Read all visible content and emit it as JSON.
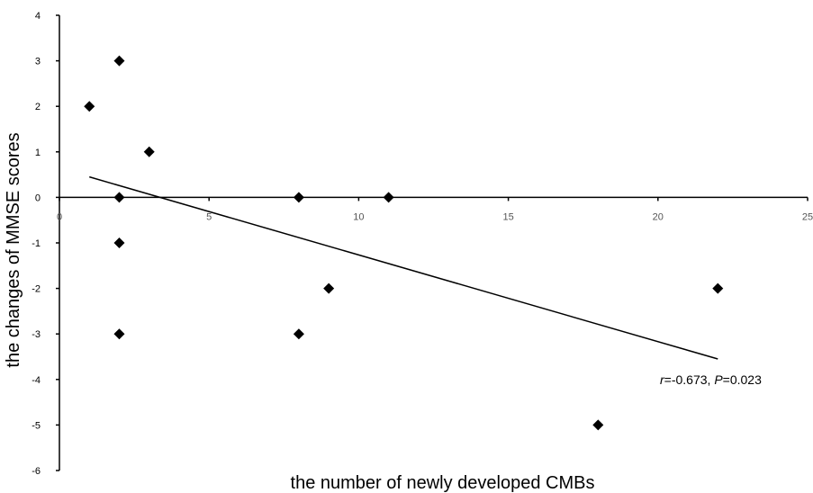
{
  "chart_data": {
    "type": "scatter",
    "title": "",
    "xlabel": "the number of newly developed CMBs",
    "ylabel": "the changes of MMSE scores",
    "xlim": [
      0,
      25
    ],
    "ylim": [
      -6,
      4
    ],
    "x_ticks": [
      0,
      5,
      10,
      15,
      20,
      25
    ],
    "y_ticks": [
      -6,
      -5,
      -4,
      -3,
      -2,
      -1,
      0,
      1,
      2,
      3,
      4
    ],
    "grid": false,
    "legend": "none",
    "marker": "diamond",
    "series": [
      {
        "points": [
          {
            "x": 1,
            "y": 2
          },
          {
            "x": 2,
            "y": 3
          },
          {
            "x": 2,
            "y": 0
          },
          {
            "x": 2,
            "y": -1
          },
          {
            "x": 2,
            "y": -3
          },
          {
            "x": 3,
            "y": 1
          },
          {
            "x": 8,
            "y": 0
          },
          {
            "x": 8,
            "y": -3
          },
          {
            "x": 9,
            "y": -2
          },
          {
            "x": 11,
            "y": 0
          },
          {
            "x": 18,
            "y": -5
          },
          {
            "x": 22,
            "y": -2
          }
        ]
      }
    ],
    "trendline": {
      "x_start": 1,
      "y_start": 0.45,
      "x_end": 22,
      "y_end": -3.55
    },
    "annotation": {
      "r_symbol": "r",
      "r_value": "=-0.673, ",
      "p_symbol": "P",
      "p_value": "=0.023"
    }
  }
}
